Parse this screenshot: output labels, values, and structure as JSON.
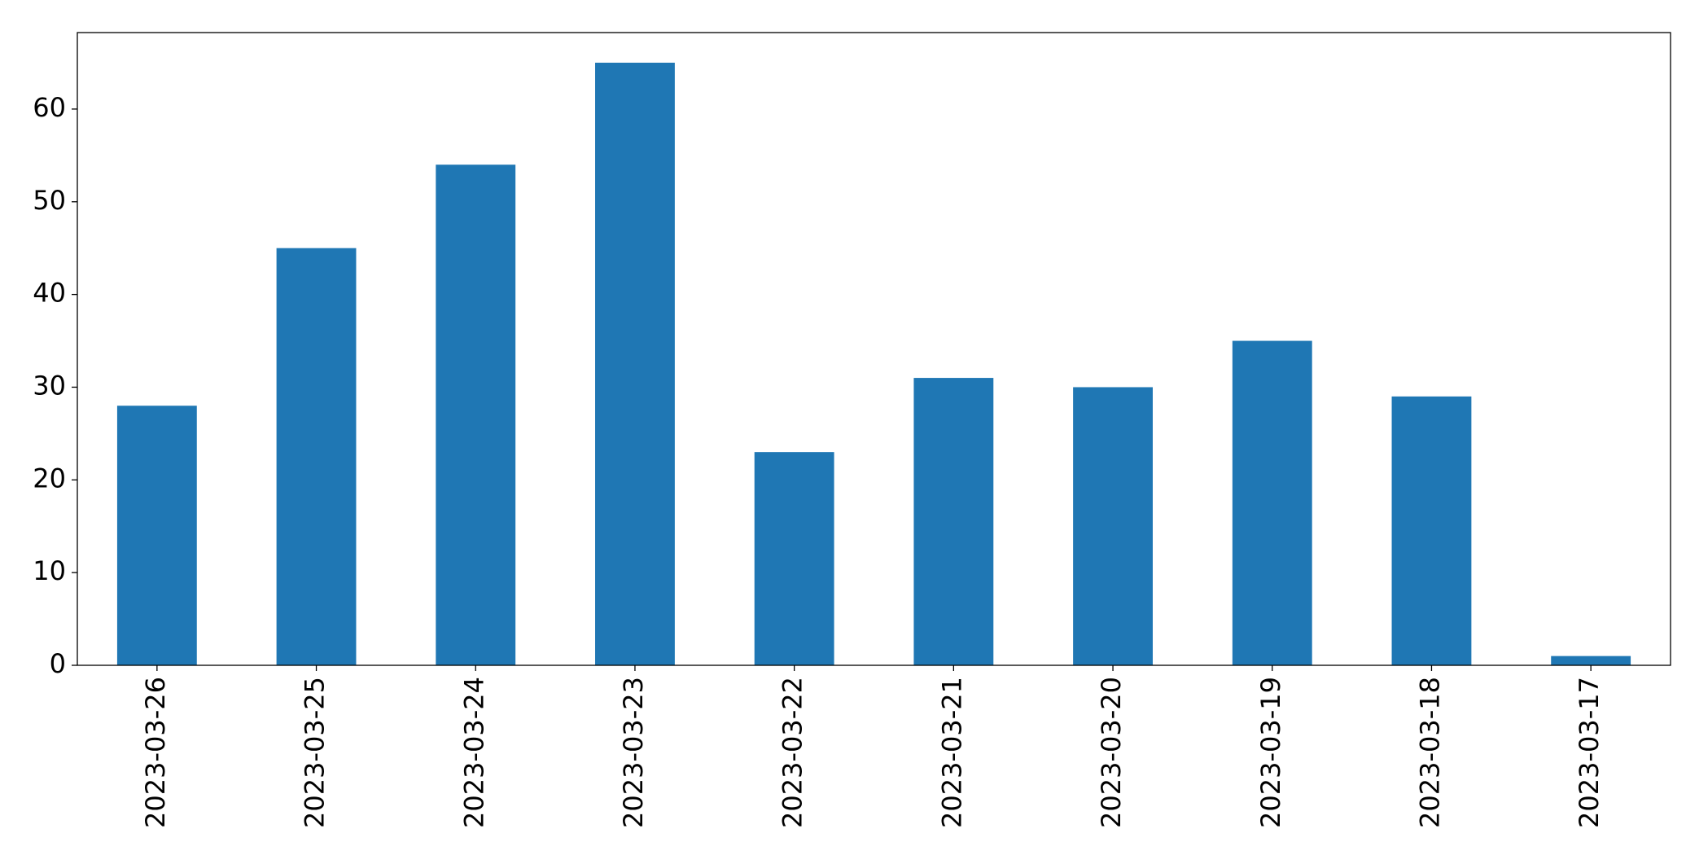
{
  "chart_data": {
    "type": "bar",
    "categories": [
      "2023-03-26",
      "2023-03-25",
      "2023-03-24",
      "2023-03-23",
      "2023-03-22",
      "2023-03-21",
      "2023-03-20",
      "2023-03-19",
      "2023-03-18",
      "2023-03-17"
    ],
    "values": [
      28,
      45,
      54,
      65,
      23,
      31,
      30,
      35,
      29,
      1
    ],
    "color": "#1f77b4",
    "ylim": [
      0,
      68.25
    ],
    "yticks": [
      0,
      10,
      20,
      30,
      40,
      50,
      60
    ],
    "grid": false
  }
}
